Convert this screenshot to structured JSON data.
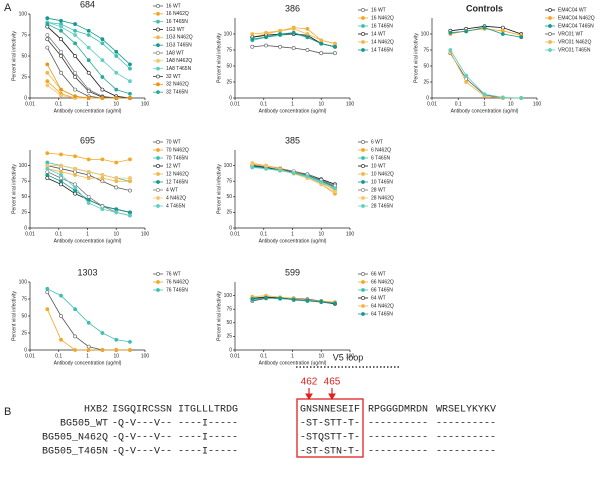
{
  "panel_labels": [
    "A",
    "B"
  ],
  "chart_data": [
    {
      "type": "line",
      "title": "684",
      "xlabel": "Antibody concentration (ug/ml)",
      "ylabel": "Percent viral infectivity",
      "xscale": "log",
      "x": [
        0.04,
        0.12,
        0.37,
        1.1,
        3.3,
        10,
        30
      ],
      "xlim": [
        0.01,
        100
      ],
      "xticks": [
        0.01,
        0.1,
        1,
        10,
        100
      ],
      "ylim": [
        0,
        100
      ],
      "yticks": [
        0,
        25,
        50,
        75,
        100
      ],
      "series": [
        {
          "name": "16 WT",
          "color": "#555555",
          "values": [
            60,
            30,
            10,
            2,
            0,
            0,
            0
          ]
        },
        {
          "name": "16 N462Q",
          "color": "#f5a623",
          "values": [
            20,
            5,
            0,
            0,
            0,
            0,
            0
          ]
        },
        {
          "name": "16 T465N",
          "color": "#3cbfb0",
          "values": [
            90,
            88,
            80,
            75,
            65,
            50,
            35
          ]
        },
        {
          "name": "1G3 WT",
          "color": "#111111",
          "values": [
            85,
            70,
            50,
            30,
            10,
            2,
            0
          ]
        },
        {
          "name": "1G3 N462Q",
          "color": "#f0b74a",
          "values": [
            30,
            10,
            2,
            0,
            0,
            0,
            0
          ]
        },
        {
          "name": "1G3 T465N",
          "color": "#17998f",
          "values": [
            95,
            92,
            88,
            80,
            70,
            55,
            40
          ]
        },
        {
          "name": "1A8 WT",
          "color": "#777777",
          "values": [
            75,
            55,
            30,
            10,
            2,
            0,
            0
          ]
        },
        {
          "name": "1A8 N462Q",
          "color": "#f7c46a",
          "values": [
            15,
            3,
            0,
            0,
            0,
            0,
            0
          ]
        },
        {
          "name": "1A8 T465N",
          "color": "#5fcfc2",
          "values": [
            90,
            85,
            75,
            60,
            45,
            30,
            20
          ]
        },
        {
          "name": "32 WT",
          "color": "#333333",
          "values": [
            70,
            50,
            25,
            8,
            1,
            0,
            0
          ]
        },
        {
          "name": "32 N462Q",
          "color": "#e8961a",
          "values": [
            40,
            10,
            2,
            0,
            0,
            0,
            0
          ]
        },
        {
          "name": "32 T465N",
          "color": "#2aa89c",
          "values": [
            88,
            80,
            65,
            45,
            25,
            10,
            5
          ]
        }
      ]
    },
    {
      "type": "line",
      "title": "386",
      "xlabel": "Antibody concentration (ug/ml)",
      "ylabel": "Percent viral infectivity",
      "xscale": "log",
      "x": [
        0.04,
        0.12,
        0.37,
        1.1,
        3.3,
        10,
        30
      ],
      "xlim": [
        0.01,
        100
      ],
      "xticks": [
        0.01,
        0.1,
        1,
        10,
        100
      ],
      "ylim": [
        0,
        125
      ],
      "yticks": [
        0,
        25,
        50,
        75,
        100
      ],
      "series": [
        {
          "name": "16 WT",
          "color": "#555555",
          "values": [
            80,
            82,
            80,
            78,
            75,
            70,
            70
          ]
        },
        {
          "name": "16 N462Q",
          "color": "#f5a623",
          "values": [
            95,
            100,
            105,
            110,
            108,
            90,
            85
          ]
        },
        {
          "name": "16 T465N",
          "color": "#3cbfb0",
          "values": [
            90,
            95,
            98,
            100,
            95,
            85,
            80
          ]
        },
        {
          "name": "14 WT",
          "color": "#111111",
          "values": [
            95,
            98,
            100,
            100,
            98,
            85,
            80
          ]
        },
        {
          "name": "14 N462Q",
          "color": "#f0b74a",
          "values": [
            100,
            102,
            105,
            108,
            100,
            90,
            85
          ]
        },
        {
          "name": "14 T465N",
          "color": "#17998f",
          "values": [
            92,
            95,
            100,
            102,
            95,
            85,
            80
          ]
        }
      ]
    },
    {
      "type": "line",
      "title": "Controls",
      "xlabel": "Antibody concentration (ug/ml)",
      "ylabel": "Percent viral infectivity",
      "xscale": "log",
      "x": [
        0.05,
        0.2,
        1,
        5,
        25
      ],
      "xlim": [
        0.01,
        100
      ],
      "xticks": [
        0.01,
        0.1,
        1,
        10,
        100
      ],
      "ylim": [
        0,
        125
      ],
      "yticks": [
        0,
        25,
        50,
        75,
        100
      ],
      "series": [
        {
          "name": "EM4C04 WT",
          "color": "#111111",
          "values": [
            105,
            108,
            112,
            110,
            100
          ]
        },
        {
          "name": "EM4C04 N462Q",
          "color": "#f5a623",
          "values": [
            100,
            105,
            108,
            105,
            98
          ]
        },
        {
          "name": "EM4C04 T465N",
          "color": "#17998f",
          "values": [
            102,
            104,
            110,
            100,
            95
          ]
        },
        {
          "name": "VRC01 WT",
          "color": "#555555",
          "values": [
            70,
            30,
            5,
            0,
            0
          ]
        },
        {
          "name": "VRC01 N462Q",
          "color": "#f0b74a",
          "values": [
            72,
            25,
            3,
            0,
            0
          ]
        },
        {
          "name": "VRC01 T465N",
          "color": "#5fcfc2",
          "values": [
            75,
            35,
            6,
            1,
            0
          ]
        }
      ]
    },
    {
      "type": "line",
      "title": "695",
      "xlabel": "Antibody concentration (ug/ml)",
      "ylabel": "Percent viral infectivity",
      "xscale": "log",
      "x": [
        0.04,
        0.12,
        0.37,
        1.1,
        3.3,
        10,
        30
      ],
      "xlim": [
        0.01,
        100
      ],
      "xticks": [
        0.01,
        0.1,
        1,
        10,
        100
      ],
      "ylim": [
        0,
        125
      ],
      "yticks": [
        0,
        25,
        50,
        75,
        100
      ],
      "series": [
        {
          "name": "70 WT",
          "color": "#555555",
          "values": [
            100,
            95,
            90,
            85,
            75,
            65,
            60
          ]
        },
        {
          "name": "70 N462Q",
          "color": "#f5a623",
          "values": [
            120,
            118,
            115,
            110,
            110,
            105,
            110
          ]
        },
        {
          "name": "70 T465N",
          "color": "#3cbfb0",
          "values": [
            105,
            100,
            95,
            90,
            85,
            80,
            75
          ]
        },
        {
          "name": "12 WT",
          "color": "#111111",
          "values": [
            80,
            70,
            55,
            45,
            35,
            30,
            25
          ]
        },
        {
          "name": "12 N462Q",
          "color": "#f0b74a",
          "values": [
            95,
            90,
            85,
            80,
            80,
            75,
            75
          ]
        },
        {
          "name": "12 T465N",
          "color": "#17998f",
          "values": [
            85,
            75,
            60,
            45,
            35,
            30,
            25
          ]
        },
        {
          "name": "4 WT",
          "color": "#777777",
          "values": [
            90,
            80,
            70,
            50,
            35,
            25,
            20
          ]
        },
        {
          "name": "4 N462Q",
          "color": "#f7c46a",
          "values": [
            100,
            100,
            95,
            90,
            85,
            80,
            80
          ]
        },
        {
          "name": "4 T465N",
          "color": "#5fcfc2",
          "values": [
            95,
            85,
            65,
            40,
            30,
            25,
            20
          ]
        }
      ]
    },
    {
      "type": "line",
      "title": "385",
      "xlabel": "Antibody concentration (ug/ml)",
      "ylabel": "Percent viral infectivity",
      "xscale": "log",
      "x": [
        0.04,
        0.12,
        0.37,
        1.1,
        3.3,
        10,
        30
      ],
      "xlim": [
        0.01,
        100
      ],
      "xticks": [
        0.01,
        0.1,
        1,
        10,
        100
      ],
      "ylim": [
        0,
        125
      ],
      "yticks": [
        0,
        25,
        50,
        75,
        100
      ],
      "series": [
        {
          "name": "6 WT",
          "color": "#555555",
          "values": [
            100,
            98,
            95,
            90,
            85,
            75,
            65
          ]
        },
        {
          "name": "6 N462Q",
          "color": "#f5a623",
          "values": [
            102,
            100,
            95,
            88,
            80,
            70,
            55
          ]
        },
        {
          "name": "6 T465N",
          "color": "#3cbfb0",
          "values": [
            98,
            95,
            92,
            88,
            82,
            72,
            62
          ]
        },
        {
          "name": "10 WT",
          "color": "#111111",
          "values": [
            100,
            97,
            94,
            90,
            86,
            78,
            70
          ]
        },
        {
          "name": "10 N462Q",
          "color": "#f0b74a",
          "values": [
            104,
            100,
            96,
            90,
            84,
            74,
            60
          ]
        },
        {
          "name": "10 T465N",
          "color": "#17998f",
          "values": [
            99,
            96,
            93,
            89,
            84,
            76,
            66
          ]
        },
        {
          "name": "28 WT",
          "color": "#777777",
          "values": [
            101,
            98,
            95,
            91,
            86,
            77,
            68
          ]
        },
        {
          "name": "28 N462Q",
          "color": "#f7c46a",
          "values": [
            103,
            99,
            94,
            87,
            80,
            70,
            58
          ]
        },
        {
          "name": "28 T465N",
          "color": "#5fcfc2",
          "values": [
            97,
            95,
            92,
            88,
            83,
            74,
            64
          ]
        }
      ]
    },
    {
      "type": "line",
      "title": "1303",
      "xlabel": "Antibody concentration (ug/ml)",
      "ylabel": "Percent viral infectivity",
      "xscale": "log",
      "x": [
        0.04,
        0.12,
        0.37,
        1.1,
        3.3,
        10,
        30
      ],
      "xlim": [
        0.01,
        100
      ],
      "xticks": [
        0.01,
        0.1,
        1,
        10,
        100
      ],
      "ylim": [
        0,
        100
      ],
      "yticks": [
        0,
        25,
        50,
        75,
        100
      ],
      "series": [
        {
          "name": "76 WT",
          "color": "#555555",
          "values": [
            85,
            50,
            20,
            5,
            0,
            0,
            0
          ]
        },
        {
          "name": "76 N462Q",
          "color": "#f5a623",
          "values": [
            60,
            15,
            0,
            0,
            0,
            0,
            0
          ]
        },
        {
          "name": "76 T465N",
          "color": "#3cbfb0",
          "values": [
            90,
            80,
            60,
            40,
            25,
            15,
            12
          ]
        }
      ]
    },
    {
      "type": "line",
      "title": "599",
      "xlabel": "Antibody concentration (ug/ml)",
      "ylabel": "Percent viral infectivity",
      "xscale": "log",
      "x": [
        0.04,
        0.12,
        0.37,
        1.1,
        3.3,
        10,
        30
      ],
      "xlim": [
        0.01,
        100
      ],
      "xticks": [
        0.01,
        0.1,
        1,
        10,
        100
      ],
      "ylim": [
        0,
        125
      ],
      "yticks": [
        0,
        25,
        50,
        75,
        100
      ],
      "series": [
        {
          "name": "66 WT",
          "color": "#555555",
          "values": [
            90,
            95,
            96,
            92,
            90,
            88,
            85
          ]
        },
        {
          "name": "66 N462Q",
          "color": "#f5a623",
          "values": [
            95,
            98,
            95,
            94,
            92,
            90,
            88
          ]
        },
        {
          "name": "66 T465N",
          "color": "#3cbfb0",
          "values": [
            92,
            96,
            94,
            93,
            90,
            89,
            86
          ]
        },
        {
          "name": "64 WT",
          "color": "#111111",
          "values": [
            95,
            97,
            96,
            95,
            93,
            90,
            85
          ]
        },
        {
          "name": "64 N462Q",
          "color": "#f0b74a",
          "values": [
            98,
            100,
            97,
            95,
            92,
            90,
            87
          ]
        },
        {
          "name": "64 T465N",
          "color": "#17998f",
          "values": [
            94,
            96,
            95,
            93,
            91,
            89,
            86
          ]
        }
      ]
    }
  ],
  "alignment": {
    "region": "V5 loop",
    "sites": [
      "462",
      "465"
    ],
    "rows": [
      {
        "name": "HXB2",
        "blocks": [
          "ISGQIRCSSN",
          "ITGLLLTRDG",
          "GNSNNESEIF",
          "RPGGGDMRDN",
          "WRSELYKYKV"
        ]
      },
      {
        "name": "BG505_WT",
        "blocks": [
          "-Q-V---V--",
          "----I-----",
          "-ST-STT-T-",
          "----------",
          "----------"
        ]
      },
      {
        "name": "BG505_N462Q",
        "blocks": [
          "-Q-V---V--",
          "----I-----",
          "-STQSTT-T-",
          "----------",
          "----------"
        ]
      },
      {
        "name": "BG505_T465N",
        "blocks": [
          "-Q-V---V--",
          "----I-----",
          "-ST-STN-T-",
          "----------",
          "----------"
        ]
      }
    ]
  }
}
